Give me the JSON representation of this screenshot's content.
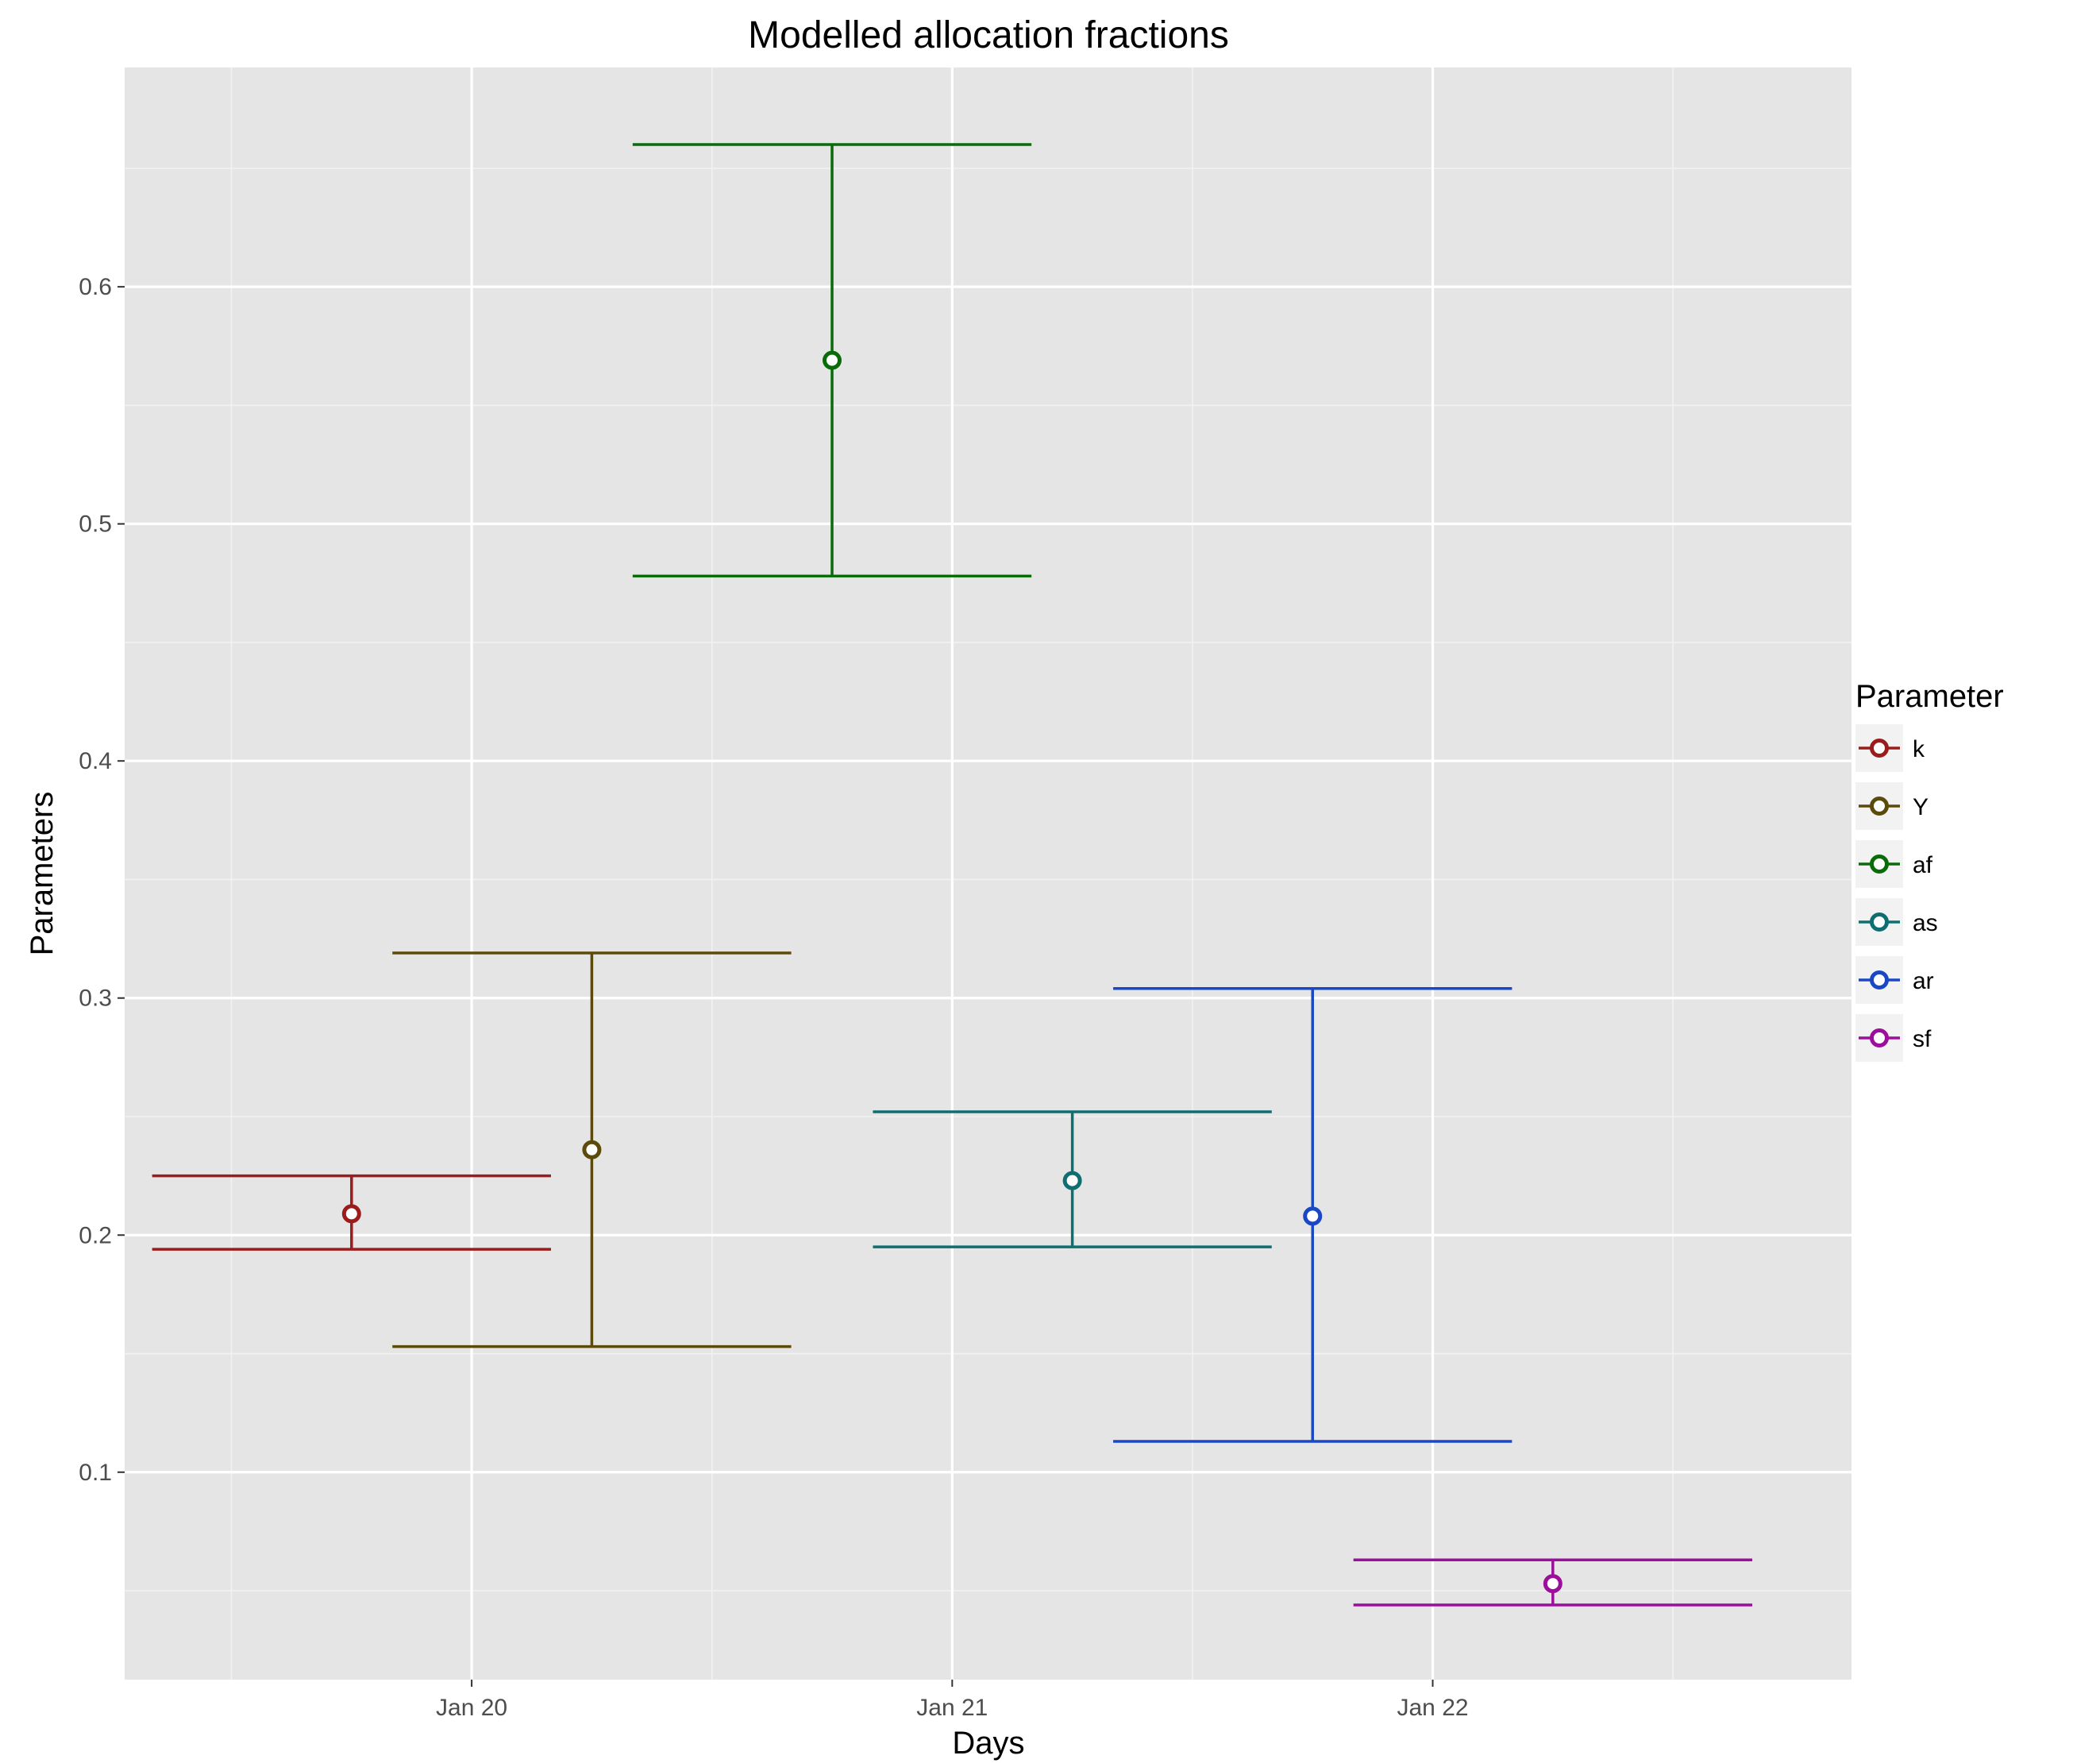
{
  "chart_data": {
    "type": "errorbar",
    "title": "Modelled allocation fractions",
    "xlabel": "Days",
    "ylabel": "Parameters",
    "x_axis": "date",
    "xlim": [
      "2019-01-19 06:40",
      "2019-01-22 20:55"
    ],
    "ylim": [
      0.0125,
      0.6925
    ],
    "x_ticks": [
      {
        "value": "2019-01-20",
        "label": "Jan 20"
      },
      {
        "value": "2019-01-21",
        "label": "Jan 21"
      },
      {
        "value": "2019-01-22",
        "label": "Jan 22"
      }
    ],
    "y_ticks": [
      0.1,
      0.2,
      0.3,
      0.4,
      0.5,
      0.6
    ],
    "y_tick_labels": [
      "0.1",
      "0.2",
      "0.3",
      "0.4",
      "0.5",
      "0.6"
    ],
    "grid": true,
    "background": "#e5e5e5",
    "legend": {
      "title": "Parameter",
      "position": "right"
    },
    "series": [
      {
        "name": "k",
        "color": "#9b1c1c",
        "x": "2019-01-19 18:00",
        "y": 0.209,
        "ymin": 0.194,
        "ymax": 0.225
      },
      {
        "name": "Y",
        "color": "#5c4a0c",
        "x": "2019-01-20 06:00",
        "y": 0.236,
        "ymin": 0.153,
        "ymax": 0.319
      },
      {
        "name": "af",
        "color": "#0a6b0a",
        "x": "2019-01-20 18:00",
        "y": 0.569,
        "ymin": 0.478,
        "ymax": 0.66
      },
      {
        "name": "as",
        "color": "#0f6e72",
        "x": "2019-01-21 06:00",
        "y": 0.223,
        "ymin": 0.195,
        "ymax": 0.252
      },
      {
        "name": "ar",
        "color": "#1a47c4",
        "x": "2019-01-21 18:00",
        "y": 0.208,
        "ymin": 0.113,
        "ymax": 0.304
      },
      {
        "name": "sf",
        "color": "#9c0f9c",
        "x": "2019-01-22 06:00",
        "y": 0.053,
        "ymin": 0.044,
        "ymax": 0.063
      }
    ]
  }
}
